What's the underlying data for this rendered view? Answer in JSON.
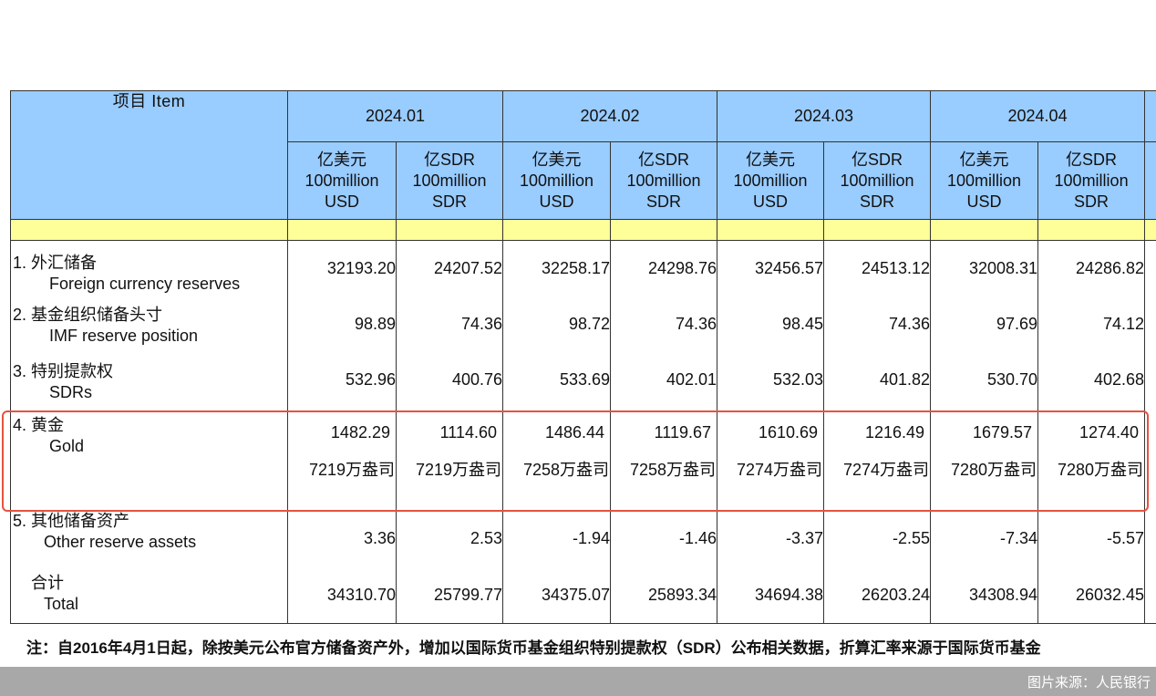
{
  "table": {
    "item_header": "项目 Item",
    "periods": [
      "2024.01",
      "2024.02",
      "2024.03",
      "2024.04"
    ],
    "unit_usd": [
      "亿美元",
      "100million",
      "USD"
    ],
    "unit_sdr": [
      "亿SDR",
      "100million",
      "SDR"
    ],
    "rows": [
      {
        "cn": "1. 外汇储备",
        "en": "Foreign currency reserves",
        "values": [
          "32193.20",
          "24207.52",
          "32258.17",
          "24298.76",
          "32456.57",
          "24513.12",
          "32008.31",
          "24286.82"
        ]
      },
      {
        "cn": "2. 基金组织储备头寸",
        "en": "IMF reserve position",
        "values": [
          "98.89",
          "74.36",
          "98.72",
          "74.36",
          "98.45",
          "74.36",
          "97.69",
          "74.12"
        ]
      },
      {
        "cn": "3. 特别提款权",
        "en": "SDRs",
        "values": [
          "532.96",
          "400.76",
          "533.69",
          "402.01",
          "532.03",
          "401.82",
          "530.70",
          "402.68"
        ]
      },
      {
        "cn": "4. 黄金",
        "en": "Gold",
        "values": [
          "1482.29",
          "1114.60",
          "1486.44",
          "1119.67",
          "1610.69",
          "1216.49",
          "1679.57",
          "1274.40"
        ],
        "ounces": [
          "7219万盎司",
          "7219万盎司",
          "7258万盎司",
          "7258万盎司",
          "7274万盎司",
          "7274万盎司",
          "7280万盎司",
          "7280万盎司"
        ]
      },
      {
        "cn": "5. 其他储备资产",
        "en": "Other reserve assets",
        "values": [
          "3.36",
          "2.53",
          "-1.94",
          "-1.46",
          "-3.37",
          "-2.55",
          "-7.34",
          "-5.57"
        ]
      },
      {
        "cn": "合计",
        "en": "Total",
        "values": [
          "34310.70",
          "25799.77",
          "34375.07",
          "25893.34",
          "34694.38",
          "26203.24",
          "34308.94",
          "26032.45"
        ]
      }
    ]
  },
  "note": "注：自2016年4月1日起，除按美元公布官方储备资产外，增加以国际货币基金组织特别提款权（SDR）公布相关数据，折算汇率来源于国际货币基金",
  "source": "图片来源：人民银行",
  "colors": {
    "header_bg": "#99ccff",
    "subheader_bg": "#ffff99",
    "highlight": "#e5533f",
    "footer_bg": "#a8a8a8"
  }
}
